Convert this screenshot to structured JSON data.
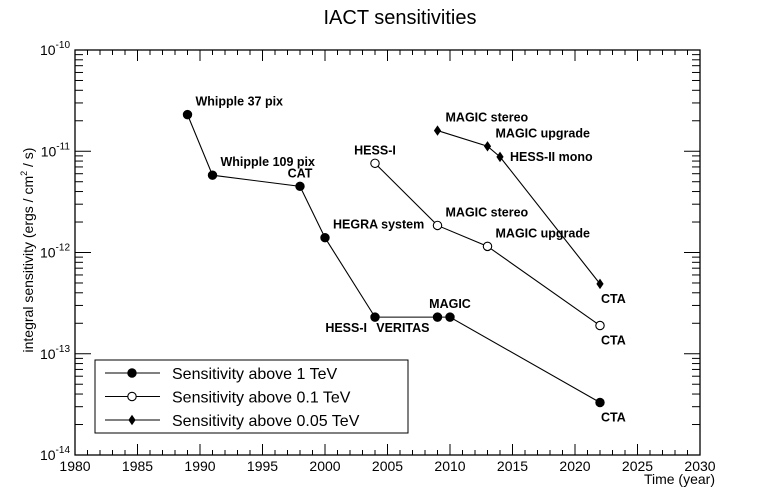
{
  "chart_data": {
    "type": "line",
    "title": "IACT sensitivities",
    "xlabel": "Time (year)",
    "ylabel": "integral sensitivity (ergs / cm² / s)",
    "ylabel_parts": {
      "pre": "integral sensitivity (ergs / cm",
      "sup": "2",
      "post": " / s)"
    },
    "xlim": [
      1980,
      2030
    ],
    "ylim": [
      1e-14,
      1e-10
    ],
    "yscale": "log",
    "x_ticks": [
      1980,
      1985,
      1990,
      1995,
      2000,
      2005,
      2010,
      2015,
      2020,
      2025,
      2030
    ],
    "x_tick_labels": [
      "1980",
      "1985",
      "1990",
      "1995",
      "2000",
      "2005",
      "2010",
      "2015",
      "2020",
      "2025",
      "2030"
    ],
    "y_ticks": [
      {
        "value": 1e-10,
        "base": "10",
        "exp": "-10"
      },
      {
        "value": 1e-11,
        "base": "10",
        "exp": "-11"
      },
      {
        "value": 1e-12,
        "base": "10",
        "exp": "-12"
      },
      {
        "value": 1e-13,
        "base": "10",
        "exp": "-13"
      },
      {
        "value": 1e-14,
        "base": "10",
        "exp": "-14"
      }
    ],
    "legend_position": "bottom-left",
    "series": [
      {
        "name": "Sensitivity above 1 TeV",
        "marker": "filled-circle",
        "points": [
          {
            "x": 1989,
            "y": 2.3e-11,
            "label": "Whipple 37 pix",
            "lpos": "tr"
          },
          {
            "x": 1991,
            "y": 5.8e-12,
            "label": "Whipple 109 pix",
            "lpos": "tr"
          },
          {
            "x": 1998,
            "y": 4.5e-12,
            "label": "CAT",
            "lpos": "t"
          },
          {
            "x": 2000,
            "y": 1.4e-12,
            "label": "HEGRA system",
            "lpos": "tr"
          },
          {
            "x": 2004,
            "y": 2.3e-13,
            "label": "HESS-I",
            "lpos": "bl"
          },
          {
            "x": 2009,
            "y": 2.3e-13,
            "label": "VERITAS",
            "lpos": "bl"
          },
          {
            "x": 2010,
            "y": 2.3e-13,
            "label": "MAGIC",
            "lpos": "t"
          },
          {
            "x": 2022,
            "y": 3.3e-14,
            "label": "CTA",
            "lpos": "b"
          }
        ]
      },
      {
        "name": "Sensitivity above 0.1 TeV",
        "marker": "open-circle",
        "points": [
          {
            "x": 2004,
            "y": 7.6e-12,
            "label": "HESS-I",
            "lpos": "t"
          },
          {
            "x": 2009,
            "y": 1.85e-12,
            "label": "MAGIC stereo",
            "lpos": "tr"
          },
          {
            "x": 2013,
            "y": 1.15e-12,
            "label": "MAGIC upgrade",
            "lpos": "tr"
          },
          {
            "x": 2022,
            "y": 1.9e-13,
            "label": "CTA",
            "lpos": "b"
          }
        ]
      },
      {
        "name": "Sensitivity above 0.05 TeV",
        "marker": "filled-diamond",
        "points": [
          {
            "x": 2009,
            "y": 1.6e-11,
            "label": "MAGIC stereo",
            "lpos": "tr"
          },
          {
            "x": 2013,
            "y": 1.12e-11,
            "label": "MAGIC upgrade",
            "lpos": "tr"
          },
          {
            "x": 2014,
            "y": 8.8e-12,
            "label": "HESS-II mono",
            "lpos": "r"
          },
          {
            "x": 2022,
            "y": 4.9e-13,
            "label": "CTA",
            "lpos": "b"
          }
        ]
      }
    ]
  }
}
